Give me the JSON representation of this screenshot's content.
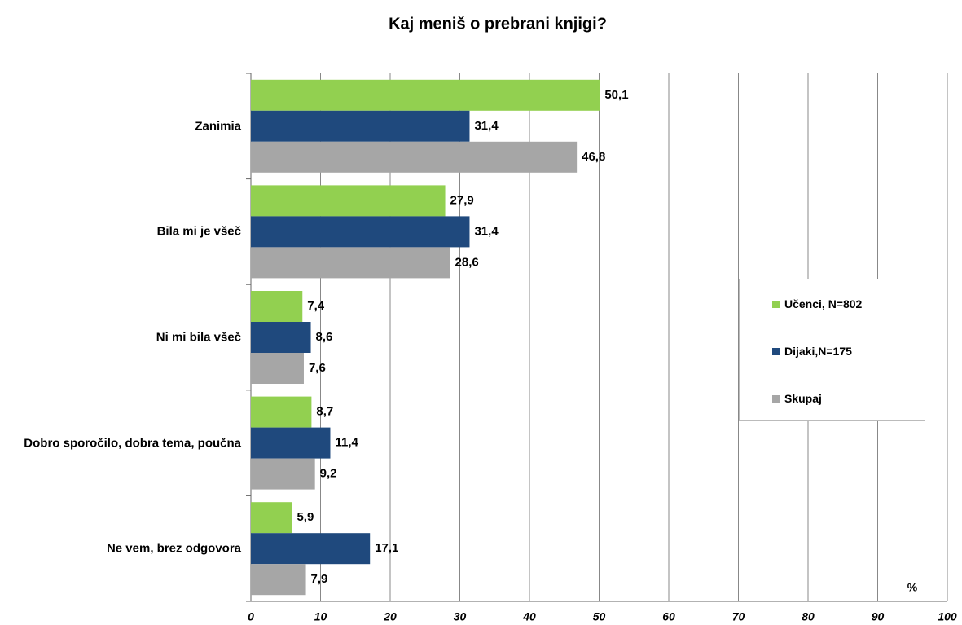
{
  "chart_data": {
    "type": "bar",
    "orientation": "horizontal",
    "title": "Kaj meniš o prebrani knjigi?",
    "x_label": "%",
    "categories": [
      "Zanimia",
      "Bila mi je všeč",
      "Ni mi bila všeč",
      "Dobro sporočilo, dobra tema, poučna",
      "Ne vem, brez odgovora"
    ],
    "series": [
      {
        "name": "Učenci, N=802",
        "color": "#92d050",
        "values": [
          50.1,
          27.9,
          7.4,
          8.7,
          5.9
        ],
        "value_labels": [
          "50,1",
          "27,9",
          "7,4",
          "8,7",
          "5,9"
        ]
      },
      {
        "name": "Dijaki,N=175",
        "color": "#1f497d",
        "values": [
          31.4,
          31.4,
          8.6,
          11.4,
          17.1
        ],
        "value_labels": [
          "31,4",
          "31,4",
          "8,6",
          "11,4",
          "17,1"
        ]
      },
      {
        "name": "Skupaj",
        "color": "#a6a6a6",
        "values": [
          46.8,
          28.6,
          7.6,
          9.2,
          7.9
        ],
        "value_labels": [
          "46,8",
          "28,6",
          "7,6",
          "9,2",
          "7,9"
        ]
      }
    ],
    "xlim": [
      0,
      100
    ],
    "xticks": [
      0,
      10,
      20,
      30,
      40,
      50,
      60,
      70,
      80,
      90,
      100
    ],
    "grid": true
  }
}
